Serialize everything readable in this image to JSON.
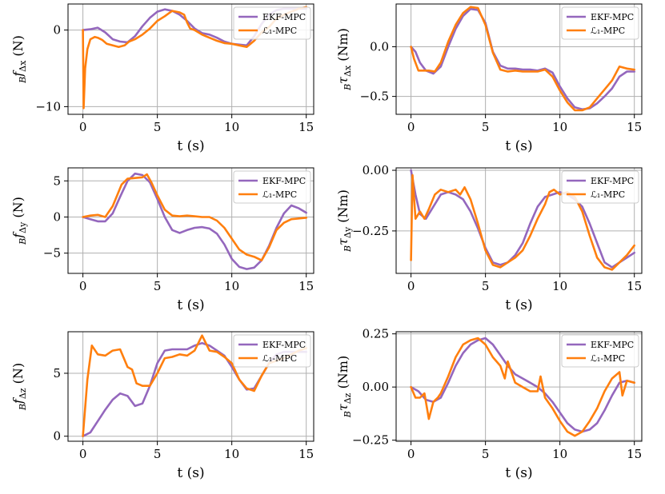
{
  "figure": {
    "series_names": [
      "EKF-MPC",
      "ℒ₁-MPC"
    ],
    "series_colors": [
      "#9467bd",
      "#ff7f0e"
    ],
    "grid_color": "#b0b0b0"
  },
  "chart_data": [
    {
      "id": "fx",
      "type": "line",
      "title": "",
      "xlabel": "t (s)",
      "ylabel": "B fΔx (N)",
      "ylabel_parts": {
        "pre": "B",
        "sym": "f",
        "sub": "Δx",
        "unit": " (N)"
      },
      "xlim": [
        -1,
        15.5
      ],
      "ylim": [
        -11,
        3.4
      ],
      "xticks": [
        0,
        5,
        10,
        15
      ],
      "xtick_labels": [
        "0",
        "5",
        "10",
        "15"
      ],
      "yticks": [
        0,
        -10
      ],
      "ytick_labels": [
        "0",
        "−10"
      ],
      "legend_position": "top-right",
      "grid": true,
      "series": [
        {
          "name": "EKF-MPC",
          "x": [
            0,
            0.5,
            1,
            1.5,
            2,
            2.5,
            3,
            3.5,
            4,
            4.5,
            5,
            5.5,
            6,
            6.5,
            7,
            7.5,
            8,
            8.5,
            9,
            9.5,
            10,
            10.5,
            11,
            11.5,
            12,
            12.5,
            13,
            13.5,
            14,
            14.5,
            15
          ],
          "y": [
            0,
            0.1,
            0.3,
            -0.3,
            -1.2,
            -1.5,
            -1.6,
            -0.8,
            0.5,
            1.6,
            2.4,
            2.7,
            2.5,
            2.0,
            1.2,
            0.2,
            -0.4,
            -0.6,
            -1.0,
            -1.5,
            -1.8,
            -1.9,
            -2.0,
            -0.8,
            0.8,
            2.0,
            2.6,
            2.8,
            2.8,
            2.8,
            2.8
          ]
        },
        {
          "name": "ℒ₁-MPC",
          "x": [
            0,
            0.05,
            0.15,
            0.3,
            0.5,
            0.8,
            1.0,
            1.3,
            1.6,
            2.0,
            2.4,
            2.8,
            3.1,
            3.5,
            4.0,
            4.5,
            5.0,
            5.5,
            6.0,
            6.5,
            6.8,
            7.0,
            7.2,
            7.5,
            8.0,
            8.5,
            9.0,
            9.5,
            10.0,
            10.5,
            11.0,
            11.5,
            12.0,
            12.5,
            13.0,
            13.5,
            14.0,
            14.5,
            15.0
          ],
          "y": [
            0,
            -10.2,
            -5.0,
            -2.5,
            -1.2,
            -0.9,
            -1.0,
            -1.3,
            -1.8,
            -2.0,
            -2.2,
            -2.0,
            -1.5,
            -1.2,
            -0.6,
            0.2,
            1.2,
            1.8,
            2.5,
            2.3,
            2.0,
            1.0,
            0.2,
            0.0,
            -0.6,
            -1.0,
            -1.4,
            -1.7,
            -1.8,
            -2.0,
            -2.2,
            -1.4,
            -0.3,
            0.4,
            1.5,
            2.0,
            2.4,
            2.8,
            3.0
          ]
        }
      ]
    },
    {
      "id": "tx",
      "type": "line",
      "title": "",
      "xlabel": "t (s)",
      "ylabel": "B τΔx (Nm)",
      "ylabel_parts": {
        "pre": "B",
        "sym": "τ",
        "sub": "Δx",
        "unit": " (Nm)"
      },
      "xlim": [
        -1,
        15.5
      ],
      "ylim": [
        -0.68,
        0.43
      ],
      "xticks": [
        0,
        5,
        10,
        15
      ],
      "xtick_labels": [
        "0",
        "5",
        "10",
        "15"
      ],
      "yticks": [
        0.0,
        -0.5
      ],
      "ytick_labels": [
        "0.0",
        "−0.5"
      ],
      "legend_position": "top-right",
      "grid": true,
      "series": [
        {
          "name": "EKF-MPC",
          "x": [
            0,
            0.3,
            0.6,
            1.0,
            1.5,
            2.0,
            2.5,
            3.0,
            3.5,
            4.0,
            4.5,
            5.0,
            5.5,
            6.0,
            6.5,
            7.0,
            7.5,
            8.0,
            8.5,
            9.0,
            9.5,
            10.0,
            10.5,
            11.0,
            11.5,
            12.0,
            12.5,
            13.0,
            13.5,
            14.0,
            14.5,
            15.0
          ],
          "y": [
            0,
            -0.05,
            -0.16,
            -0.24,
            -0.27,
            -0.2,
            0.0,
            0.18,
            0.31,
            0.38,
            0.37,
            0.24,
            -0.05,
            -0.19,
            -0.22,
            -0.22,
            -0.23,
            -0.23,
            -0.24,
            -0.22,
            -0.26,
            -0.4,
            -0.52,
            -0.61,
            -0.63,
            -0.62,
            -0.57,
            -0.5,
            -0.42,
            -0.3,
            -0.25,
            -0.25
          ]
        },
        {
          "name": "ℒ₁-MPC",
          "x": [
            0,
            0.2,
            0.5,
            0.8,
            1.2,
            1.6,
            2.0,
            2.5,
            3.0,
            3.5,
            4.0,
            4.5,
            5.0,
            5.5,
            6.0,
            6.5,
            7.0,
            7.5,
            8.0,
            8.5,
            9.0,
            9.5,
            10.0,
            10.5,
            11.0,
            11.5,
            12.0,
            12.5,
            13.0,
            13.5,
            14.0,
            14.5,
            15.0
          ],
          "y": [
            0,
            -0.12,
            -0.24,
            -0.24,
            -0.24,
            -0.25,
            -0.16,
            0.05,
            0.22,
            0.34,
            0.4,
            0.39,
            0.22,
            -0.06,
            -0.23,
            -0.25,
            -0.24,
            -0.25,
            -0.25,
            -0.25,
            -0.23,
            -0.3,
            -0.44,
            -0.56,
            -0.64,
            -0.64,
            -0.61,
            -0.52,
            -0.43,
            -0.34,
            -0.2,
            -0.22,
            -0.23
          ]
        }
      ]
    },
    {
      "id": "fy",
      "type": "line",
      "title": "",
      "xlabel": "t (s)",
      "ylabel": "B fΔy (N)",
      "ylabel_parts": {
        "pre": "B",
        "sym": "f",
        "sub": "Δy",
        "unit": " (N)"
      },
      "xlim": [
        -1,
        15.5
      ],
      "ylim": [
        -7.8,
        6.8
      ],
      "xticks": [
        0,
        5,
        10,
        15
      ],
      "xtick_labels": [
        "0",
        "5",
        "10",
        "15"
      ],
      "yticks": [
        5,
        0,
        -5
      ],
      "ytick_labels": [
        "5",
        "0",
        "−5"
      ],
      "legend_position": "top-right",
      "grid": true,
      "series": [
        {
          "name": "EKF-MPC",
          "x": [
            0,
            0.5,
            1.0,
            1.5,
            2.0,
            2.5,
            3.0,
            3.5,
            4.0,
            4.5,
            5.0,
            5.5,
            6.0,
            6.5,
            7.0,
            7.5,
            8.0,
            8.5,
            9.0,
            9.5,
            10.0,
            10.5,
            11.0,
            11.5,
            12.0,
            12.5,
            13.0,
            13.5,
            14.0,
            14.5,
            15.0
          ],
          "y": [
            0,
            -0.3,
            -0.6,
            -0.6,
            0.5,
            2.8,
            5.0,
            6.0,
            5.8,
            4.8,
            2.5,
            0.0,
            -1.8,
            -2.2,
            -1.8,
            -1.5,
            -1.4,
            -1.6,
            -2.3,
            -3.8,
            -5.8,
            -6.9,
            -7.2,
            -7.0,
            -6.0,
            -4.0,
            -1.5,
            0.5,
            1.6,
            1.2,
            0.6
          ]
        },
        {
          "name": "ℒ₁-MPC",
          "x": [
            0,
            0.5,
            1.0,
            1.5,
            2.0,
            2.3,
            2.6,
            3.0,
            3.5,
            4.0,
            4.3,
            4.6,
            5.0,
            5.5,
            6.0,
            6.5,
            7.0,
            7.5,
            8.0,
            8.5,
            9.0,
            9.5,
            10.0,
            10.5,
            11.0,
            11.5,
            12.0,
            12.5,
            13.0,
            13.5,
            14.0,
            14.5,
            15.0
          ],
          "y": [
            0,
            0.2,
            0.3,
            0.0,
            1.5,
            3.0,
            4.5,
            5.3,
            5.4,
            5.5,
            5.9,
            4.8,
            3.0,
            1.0,
            0.2,
            0.1,
            0.2,
            0.1,
            0.0,
            0.0,
            -0.5,
            -1.5,
            -3.0,
            -4.5,
            -5.2,
            -5.5,
            -6.0,
            -4.2,
            -1.8,
            -0.8,
            -0.3,
            -0.2,
            -0.1
          ]
        }
      ]
    },
    {
      "id": "ty",
      "type": "line",
      "title": "",
      "xlabel": "t (s)",
      "ylabel": "B τΔy (Nm)",
      "ylabel_parts": {
        "pre": "B",
        "sym": "τ",
        "sub": "Δy",
        "unit": " (Nm)"
      },
      "xlim": [
        -1,
        15.5
      ],
      "ylim": [
        -0.425,
        0.01
      ],
      "xticks": [
        0,
        5,
        10,
        15
      ],
      "xtick_labels": [
        "0",
        "5",
        "10",
        "15"
      ],
      "yticks": [
        0.0,
        -0.25
      ],
      "ytick_labels": [
        "0.00",
        "−0.25"
      ],
      "legend_position": "top-right",
      "grid": true,
      "series": [
        {
          "name": "EKF-MPC",
          "x": [
            0,
            0.3,
            0.6,
            1.0,
            1.5,
            2.0,
            2.5,
            3.0,
            3.5,
            4.0,
            4.5,
            5.0,
            5.5,
            6.0,
            6.5,
            7.0,
            7.5,
            8.0,
            8.5,
            9.0,
            9.5,
            10.0,
            10.5,
            11.0,
            11.5,
            12.0,
            12.5,
            13.0,
            13.5,
            14.0,
            14.5,
            15.0
          ],
          "y": [
            0,
            -0.1,
            -0.18,
            -0.2,
            -0.15,
            -0.1,
            -0.09,
            -0.1,
            -0.12,
            -0.17,
            -0.24,
            -0.32,
            -0.38,
            -0.39,
            -0.38,
            -0.35,
            -0.3,
            -0.22,
            -0.15,
            -0.11,
            -0.1,
            -0.09,
            -0.1,
            -0.12,
            -0.15,
            -0.22,
            -0.3,
            -0.38,
            -0.4,
            -0.38,
            -0.36,
            -0.34
          ]
        },
        {
          "name": "ℒ₁-MPC",
          "x": [
            0,
            0.1,
            0.3,
            0.6,
            0.9,
            1.2,
            1.6,
            2.0,
            2.5,
            3.0,
            3.3,
            3.6,
            4.0,
            4.5,
            5.0,
            5.5,
            6.0,
            6.5,
            7.0,
            7.5,
            8.0,
            8.5,
            9.0,
            9.3,
            9.6,
            10.0,
            10.5,
            11.0,
            11.5,
            12.0,
            12.5,
            13.0,
            13.5,
            14.0,
            14.5,
            15.0
          ],
          "y": [
            -0.37,
            -0.02,
            -0.2,
            -0.17,
            -0.2,
            -0.16,
            -0.1,
            -0.08,
            -0.09,
            -0.08,
            -0.1,
            -0.07,
            -0.12,
            -0.22,
            -0.33,
            -0.39,
            -0.4,
            -0.38,
            -0.36,
            -0.33,
            -0.27,
            -0.2,
            -0.14,
            -0.09,
            -0.08,
            -0.1,
            -0.09,
            -0.11,
            -0.17,
            -0.27,
            -0.36,
            -0.4,
            -0.41,
            -0.38,
            -0.35,
            -0.31
          ]
        }
      ]
    },
    {
      "id": "fz",
      "type": "line",
      "title": "",
      "xlabel": "t (s)",
      "ylabel": "B fΔz (N)",
      "ylabel_parts": {
        "pre": "B",
        "sym": "f",
        "sub": "Δz",
        "unit": " (N)"
      },
      "xlim": [
        -1,
        15.5
      ],
      "ylim": [
        -0.4,
        8.3
      ],
      "xticks": [
        0,
        5,
        10,
        15
      ],
      "xtick_labels": [
        "0",
        "5",
        "10",
        "15"
      ],
      "yticks": [
        5,
        0
      ],
      "ytick_labels": [
        "5",
        "0"
      ],
      "legend_position": "top-right",
      "grid": true,
      "series": [
        {
          "name": "EKF-MPC",
          "x": [
            0,
            0.5,
            1.0,
            1.5,
            2.0,
            2.5,
            3.0,
            3.5,
            4.0,
            4.5,
            5.0,
            5.5,
            6.0,
            6.5,
            7.0,
            7.5,
            8.0,
            8.5,
            9.0,
            9.5,
            10.0,
            10.5,
            11.0,
            11.5,
            12.0,
            12.5,
            13.0,
            13.5,
            14.0,
            14.5,
            15.0
          ],
          "y": [
            0,
            0.3,
            1.2,
            2.1,
            2.9,
            3.4,
            3.2,
            2.4,
            2.6,
            4.0,
            5.8,
            6.8,
            6.9,
            6.9,
            6.9,
            7.2,
            7.4,
            7.2,
            6.8,
            6.4,
            5.5,
            4.5,
            3.7,
            3.8,
            4.8,
            5.8,
            6.5,
            6.7,
            6.7,
            6.7,
            6.7
          ]
        },
        {
          "name": "ℒ₁-MPC",
          "x": [
            0,
            0.3,
            0.6,
            1.0,
            1.5,
            2.0,
            2.5,
            3.0,
            3.3,
            3.6,
            4.0,
            4.5,
            5.0,
            5.5,
            6.0,
            6.5,
            7.0,
            7.5,
            8.0,
            8.5,
            9.0,
            9.5,
            10.0,
            10.5,
            11.0,
            11.5,
            12.0,
            12.5,
            13.0,
            13.5,
            14.0,
            14.5,
            15.0
          ],
          "y": [
            0,
            4.5,
            7.2,
            6.5,
            6.4,
            6.8,
            6.9,
            5.5,
            5.3,
            4.2,
            4.0,
            4.0,
            5.0,
            6.2,
            6.3,
            6.5,
            6.4,
            6.8,
            8.0,
            6.8,
            6.7,
            6.3,
            5.8,
            4.5,
            3.8,
            3.6,
            4.8,
            5.8,
            6.0,
            6.2,
            6.5,
            6.8,
            7.0
          ]
        }
      ]
    },
    {
      "id": "tz",
      "type": "line",
      "title": "",
      "xlabel": "t (s)",
      "ylabel": "B τΔz (Nm)",
      "ylabel_parts": {
        "pre": "B",
        "sym": "τ",
        "sub": "Δz",
        "unit": " (Nm)"
      },
      "xlim": [
        -1,
        15.5
      ],
      "ylim": [
        -0.255,
        0.26
      ],
      "xticks": [
        0,
        5,
        10,
        15
      ],
      "xtick_labels": [
        "0",
        "5",
        "10",
        "15"
      ],
      "yticks": [
        0.25,
        0.0,
        -0.25
      ],
      "ytick_labels": [
        "0.25",
        "0.00",
        "−0.25"
      ],
      "legend_position": "top-right",
      "grid": true,
      "series": [
        {
          "name": "EKF-MPC",
          "x": [
            0,
            0.5,
            1.0,
            1.5,
            2.0,
            2.5,
            3.0,
            3.5,
            4.0,
            4.5,
            5.0,
            5.5,
            6.0,
            6.5,
            7.0,
            7.5,
            8.0,
            8.5,
            9.0,
            9.5,
            10.0,
            10.5,
            11.0,
            11.5,
            12.0,
            12.5,
            13.0,
            13.5,
            14.0,
            14.5,
            15.0
          ],
          "y": [
            0,
            -0.02,
            -0.06,
            -0.07,
            -0.05,
            0.02,
            0.1,
            0.16,
            0.2,
            0.22,
            0.23,
            0.2,
            0.15,
            0.1,
            0.06,
            0.04,
            0.02,
            0.0,
            -0.03,
            -0.07,
            -0.12,
            -0.17,
            -0.2,
            -0.21,
            -0.2,
            -0.17,
            -0.11,
            -0.04,
            0.02,
            0.03,
            0.02
          ]
        },
        {
          "name": "ℒ₁-MPC",
          "x": [
            0,
            0.3,
            0.6,
            0.9,
            1.2,
            1.5,
            1.8,
            2.0,
            2.5,
            3.0,
            3.5,
            4.0,
            4.5,
            5.0,
            5.5,
            6.0,
            6.3,
            6.5,
            7.0,
            7.5,
            8.0,
            8.5,
            8.7,
            9.0,
            9.5,
            10.0,
            10.5,
            11.0,
            11.5,
            12.0,
            12.5,
            13.0,
            13.5,
            14.0,
            14.2,
            14.5,
            15.0
          ],
          "y": [
            0,
            -0.05,
            -0.05,
            -0.03,
            -0.15,
            -0.07,
            -0.05,
            -0.03,
            0.05,
            0.14,
            0.2,
            0.22,
            0.23,
            0.2,
            0.14,
            0.1,
            0.04,
            0.12,
            0.02,
            0.0,
            -0.02,
            -0.02,
            0.05,
            -0.05,
            -0.1,
            -0.16,
            -0.21,
            -0.23,
            -0.21,
            -0.16,
            -0.1,
            -0.02,
            0.04,
            0.07,
            -0.04,
            0.03,
            0.02
          ]
        }
      ]
    }
  ]
}
